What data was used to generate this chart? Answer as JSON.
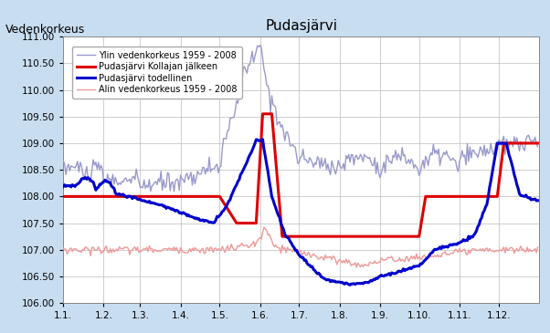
{
  "title": "Pudasjärvi",
  "top_left_label": "Vedenkorkeus",
  "ylim": [
    106.0,
    111.0
  ],
  "yticks": [
    106.0,
    106.5,
    107.0,
    107.5,
    108.0,
    108.5,
    109.0,
    109.5,
    110.0,
    110.5,
    111.0
  ],
  "background_color": "#c8ddf0",
  "plot_bg_color": "#ffffff",
  "grid_color": "#bbbbbb",
  "legend": [
    {
      "label": "Ylin vedenkorkeus 1959 - 2008",
      "color": "#9999cc",
      "lw": 1.0
    },
    {
      "label": "Pudasjärvi Kollajan jälkeen",
      "color": "#dd0000",
      "lw": 2.2
    },
    {
      "label": "Pudasjärvi todellinen",
      "color": "#0000cc",
      "lw": 2.2
    },
    {
      "label": "Alin vedenkorkeus 1959 - 2008",
      "color": "#ee9999",
      "lw": 1.0
    }
  ],
  "month_starts": [
    0,
    31,
    59,
    90,
    120,
    151,
    181,
    212,
    243,
    273,
    304,
    334
  ],
  "month_labels": [
    "1.1.",
    "1.2.",
    "1.3.",
    "1.4.",
    "1.5.",
    "1.6.",
    "1.7.",
    "1.8.",
    "1.9.",
    "1.10.",
    "1.11.",
    "1.12."
  ]
}
